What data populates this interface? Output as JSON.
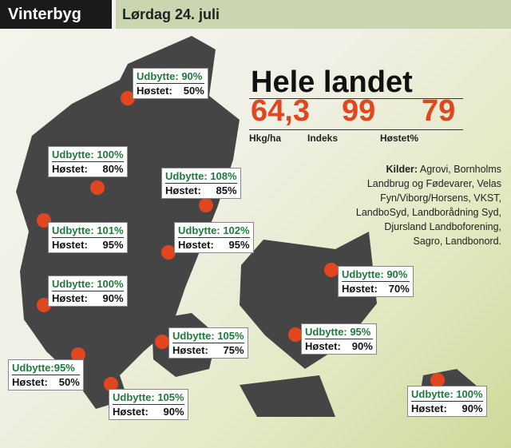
{
  "header": {
    "title": "Vinterbyg",
    "date": "Lørdag 24. juli"
  },
  "summary": {
    "title": "Hele landet",
    "stats": [
      {
        "value": "64,3",
        "label": "Hkg/ha"
      },
      {
        "value": "99",
        "label": "Indeks"
      },
      {
        "value": "79",
        "label": "Høstet%"
      }
    ]
  },
  "sources": {
    "label": "Kilder:",
    "lines": [
      "Agrovi, Bornholms",
      "Landbrug og Fødevarer, Velas",
      "Fyn/Viborg/Horsens, VKST,",
      "LandboSyd, Landborådning Syd,",
      "Djursland Landboforening,",
      "Sagro, Landbonord."
    ]
  },
  "regions": [
    {
      "yield": "Udbytte: 90%",
      "harvested_label": "Høstet:",
      "harvested": "50%"
    },
    {
      "yield": "Udbytte: 100%",
      "harvested_label": "Høstet:",
      "harvested": "80%"
    },
    {
      "yield": "Udbytte: 108%",
      "harvested_label": "Høstet:",
      "harvested": "85%"
    },
    {
      "yield": "Udbytte: 101%",
      "harvested_label": "Høstet:",
      "harvested": "95%"
    },
    {
      "yield": "Udbytte: 102%",
      "harvested_label": "Høstet:",
      "harvested": "95%"
    },
    {
      "yield": "Udbytte: 100%",
      "harvested_label": "Høstet:",
      "harvested": "90%"
    },
    {
      "yield": "Udbytte: 90%",
      "harvested_label": "Høstet:",
      "harvested": "70%"
    },
    {
      "yield": "Udbytte:95%",
      "harvested_label": "Høstet:",
      "harvested": "50%"
    },
    {
      "yield": "Udbytte: 105%",
      "harvested_label": "Høstet:",
      "harvested": "75%"
    },
    {
      "yield": "Udbytte: 95%",
      "harvested_label": "Høstet:",
      "harvested": "90%"
    },
    {
      "yield": "Udbytte: 105%",
      "harvested_label": "Høstet:",
      "harvested": "90%"
    },
    {
      "yield": "Udbytte: 100%",
      "harvested_label": "Høstet:",
      "harvested": "90%"
    }
  ]
}
